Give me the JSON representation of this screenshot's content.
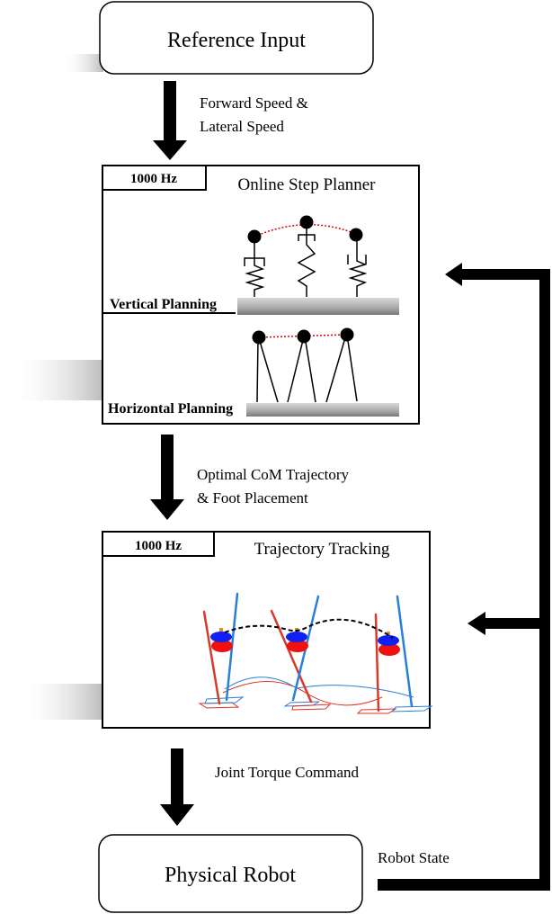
{
  "blocks": {
    "reference_input": "Reference Input",
    "step_planner": {
      "rate": "1000 Hz",
      "title": "Online Step Planner",
      "vertical_label": "Vertical Planning",
      "horizontal_label": "Horizontal Planning"
    },
    "tracking": {
      "rate": "1000 Hz",
      "title": "Trajectory Tracking"
    },
    "physical_robot": "Physical Robot"
  },
  "arrows": {
    "a1_line1": "Forward Speed  &",
    "a1_line2": "Lateral Speed",
    "a2_line1": "Optimal CoM Trajectory",
    "a2_line2": "&  Foot Placement",
    "a3": "Joint Torque Command",
    "feedback": "Robot State"
  },
  "colors": {
    "com_path": "#e00000",
    "left_leg": "#d83a2a",
    "right_leg": "#2a7fd8",
    "ground": "#9a9a9a"
  }
}
